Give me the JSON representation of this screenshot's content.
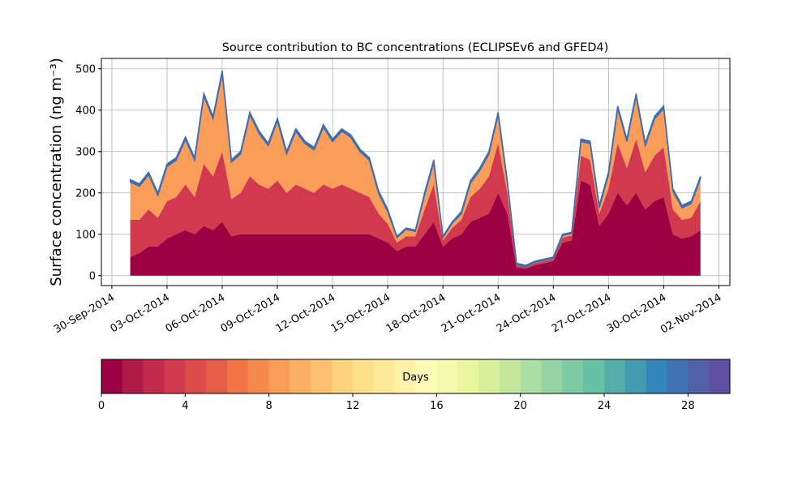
{
  "chart_data": {
    "type": "stacked_area",
    "title": "Source contribution to BC concentrations (ECLIPSEv6 and GFED4)",
    "y_label": "Surface concentration (ng m⁻³)",
    "x": [
      1.0,
      1.5,
      2.0,
      2.5,
      3.0,
      3.5,
      4.0,
      4.5,
      5.0,
      5.5,
      6.0,
      6.5,
      7.0,
      7.5,
      8.0,
      8.5,
      9.0,
      9.5,
      10.0,
      10.5,
      11.0,
      11.5,
      12.0,
      12.5,
      13.0,
      13.5,
      14.0,
      14.5,
      15.0,
      15.5,
      16.0,
      16.5,
      17.0,
      17.5,
      18.0,
      18.5,
      19.0,
      19.5,
      20.0,
      20.5,
      21.0,
      21.5,
      22.0,
      22.5,
      23.0,
      23.5,
      24.0,
      24.5,
      25.0,
      25.5,
      26.0,
      26.5,
      27.0,
      27.5,
      28.0,
      28.5,
      29.0,
      29.5,
      30.0,
      30.5,
      31.0,
      31.5,
      32.0
    ],
    "series": [
      {
        "color": "#9e0142",
        "values": [
          45,
          55,
          70,
          70,
          90,
          100,
          110,
          100,
          120,
          110,
          130,
          95,
          100,
          100,
          100,
          100,
          100,
          100,
          100,
          100,
          100,
          100,
          100,
          100,
          100,
          100,
          100,
          90,
          80,
          60,
          70,
          70,
          100,
          130,
          70,
          90,
          100,
          130,
          140,
          150,
          200,
          150,
          20,
          17,
          25,
          30,
          35,
          80,
          85,
          230,
          220,
          120,
          150,
          200,
          170,
          200,
          160,
          180,
          190,
          100,
          90,
          95,
          110
        ]
      },
      {
        "color": "#d3394e",
        "values": [
          90,
          80,
          90,
          70,
          90,
          90,
          110,
          90,
          150,
          130,
          170,
          90,
          100,
          140,
          120,
          110,
          130,
          100,
          120,
          110,
          100,
          120,
          110,
          120,
          110,
          100,
          90,
          60,
          45,
          20,
          25,
          25,
          60,
          90,
          15,
          25,
          35,
          60,
          70,
          90,
          120,
          50,
          5,
          4,
          5,
          5,
          5,
          12,
          12,
          60,
          60,
          30,
          60,
          120,
          90,
          130,
          90,
          110,
          120,
          60,
          45,
          45,
          70
        ]
      },
      {
        "color": "#f99d59",
        "values": [
          91,
          81,
          84,
          54,
          84,
          89,
          109,
          89,
          164,
          139,
          189,
          89,
          94,
          149,
          124,
          104,
          144,
          94,
          129,
          109,
          104,
          139,
          114,
          129,
          124,
          99,
          89,
          49,
          29,
          12,
          17,
          12,
          34,
          54,
          7,
          12,
          14,
          34,
          44,
          54,
          69,
          24,
          2,
          1,
          2,
          2,
          2,
          5,
          5,
          34,
          39,
          14,
          34,
          84,
          64,
          104,
          64,
          89,
          94,
          44,
          29,
          34,
          54
        ]
      },
      {
        "color": "#3f6db0",
        "values": [
          6,
          6,
          6,
          6,
          6,
          6,
          6,
          6,
          6,
          6,
          6,
          6,
          6,
          6,
          6,
          6,
          6,
          6,
          6,
          6,
          6,
          6,
          6,
          6,
          6,
          6,
          6,
          6,
          6,
          3,
          3,
          3,
          6,
          6,
          3,
          3,
          6,
          6,
          6,
          6,
          6,
          6,
          3,
          3,
          3,
          3,
          3,
          3,
          3,
          6,
          6,
          6,
          6,
          6,
          6,
          6,
          6,
          6,
          6,
          6,
          6,
          6,
          6
        ]
      }
    ],
    "xlim": [
      -0.57,
      33.6
    ],
    "xticks": [
      {
        "value": 0,
        "label": "30-Sep-2014"
      },
      {
        "value": 3,
        "label": "03-Oct-2014"
      },
      {
        "value": 6,
        "label": "06-Oct-2014"
      },
      {
        "value": 9,
        "label": "09-Oct-2014"
      },
      {
        "value": 12,
        "label": "12-Oct-2014"
      },
      {
        "value": 15,
        "label": "15-Oct-2014"
      },
      {
        "value": 18,
        "label": "18-Oct-2014"
      },
      {
        "value": 21,
        "label": "21-Oct-2014"
      },
      {
        "value": 24,
        "label": "24-Oct-2014"
      },
      {
        "value": 27,
        "label": "27-Oct-2014"
      },
      {
        "value": 30,
        "label": "30-Oct-2014"
      },
      {
        "value": 33,
        "label": "02-Nov-2014"
      }
    ],
    "ylim": [
      -24,
      525
    ],
    "yticks": [
      0,
      100,
      200,
      300,
      400,
      500
    ],
    "grid": true,
    "colorbar": {
      "label": "Days",
      "lim": [
        0,
        30
      ],
      "ticks": [
        0,
        4,
        8,
        12,
        16,
        20,
        24,
        28
      ],
      "colors": [
        "#9e0142",
        "#b01a4a",
        "#c32a4b",
        "#d3394e",
        "#dd4b4a",
        "#e65e48",
        "#f07446",
        "#f68a4e",
        "#f99d59",
        "#fbb064",
        "#fdc170",
        "#fdd27e",
        "#fee08b",
        "#fee999",
        "#fff2a8",
        "#fdfbb7",
        "#f4faac",
        "#e9f69d",
        "#d9ef9a",
        "#c4e79e",
        "#acdda2",
        "#94d3a4",
        "#7dcaa5",
        "#66c1a4",
        "#55aea9",
        "#449aae",
        "#3286bb",
        "#3f73b3",
        "#5061aa",
        "#5e4fa2"
      ]
    }
  }
}
